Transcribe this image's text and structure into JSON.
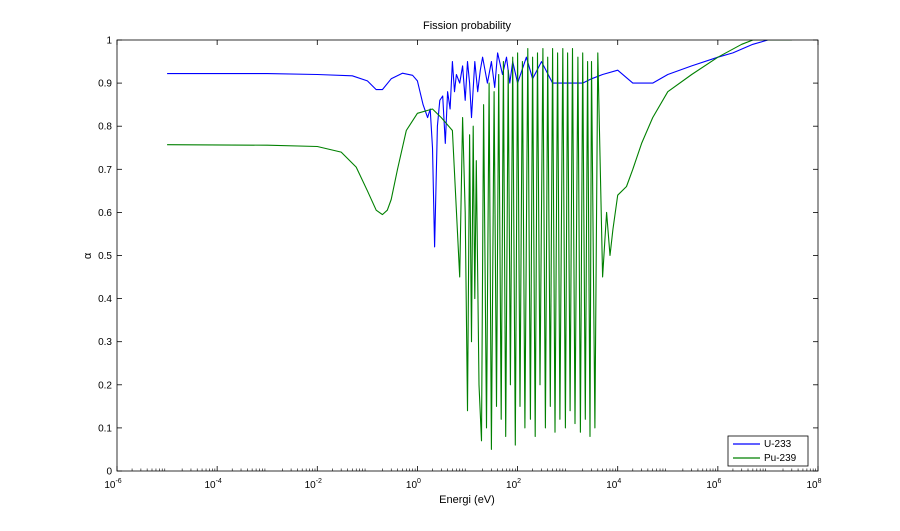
{
  "chart_data": {
    "type": "line",
    "title": "Fission probability",
    "xlabel": "Energi (eV)",
    "ylabel": "α",
    "xscale": "log",
    "xlim": [
      1e-06,
      100000000.0
    ],
    "ylim": [
      0,
      1
    ],
    "grid": false,
    "legend_position": "bottom-right",
    "x_ticks": [
      {
        "base": "10",
        "exp": "-6"
      },
      {
        "base": "10",
        "exp": "-4"
      },
      {
        "base": "10",
        "exp": "-2"
      },
      {
        "base": "10",
        "exp": "0"
      },
      {
        "base": "10",
        "exp": "2"
      },
      {
        "base": "10",
        "exp": "4"
      },
      {
        "base": "10",
        "exp": "6"
      },
      {
        "base": "10",
        "exp": "8"
      }
    ],
    "y_ticks": [
      "0",
      "0.1",
      "0.2",
      "0.3",
      "0.4",
      "0.5",
      "0.6",
      "0.7",
      "0.8",
      "0.9",
      "1"
    ],
    "series": [
      {
        "name": "U-233",
        "color": "#0000ff",
        "x": [
          1e-05,
          0.001,
          0.01,
          0.05,
          0.1,
          0.15,
          0.2,
          0.3,
          0.5,
          0.8,
          1.0,
          1.3,
          1.6,
          1.8,
          2.0,
          2.2,
          2.5,
          2.8,
          3.2,
          3.6,
          4.0,
          4.5,
          5.0,
          5.5,
          6.0,
          7.0,
          8.0,
          9.0,
          10,
          11,
          12,
          14,
          16,
          18,
          20,
          25,
          30,
          35,
          40,
          50,
          60,
          70,
          80,
          100,
          150,
          200,
          300,
          500,
          1000,
          2000,
          3000,
          5000,
          10000,
          20000,
          30000,
          50000,
          100000,
          300000,
          1000000,
          2000000,
          5000000,
          10000000,
          30000000
        ],
        "y": [
          0.922,
          0.922,
          0.92,
          0.917,
          0.905,
          0.885,
          0.885,
          0.91,
          0.923,
          0.918,
          0.905,
          0.85,
          0.82,
          0.84,
          0.75,
          0.52,
          0.8,
          0.86,
          0.87,
          0.76,
          0.88,
          0.84,
          0.95,
          0.88,
          0.92,
          0.9,
          0.94,
          0.86,
          0.95,
          0.9,
          0.82,
          0.95,
          0.88,
          0.93,
          0.96,
          0.9,
          0.95,
          0.89,
          0.97,
          0.92,
          0.96,
          0.9,
          0.95,
          0.9,
          0.96,
          0.91,
          0.95,
          0.9,
          0.9,
          0.9,
          0.91,
          0.92,
          0.93,
          0.9,
          0.9,
          0.9,
          0.92,
          0.94,
          0.96,
          0.97,
          0.99,
          1.0,
          1.0
        ]
      },
      {
        "name": "Pu-239",
        "color": "#008000",
        "x": [
          1e-05,
          0.001,
          0.01,
          0.03,
          0.06,
          0.1,
          0.15,
          0.2,
          0.25,
          0.3,
          0.4,
          0.6,
          1.0,
          2.0,
          3.0,
          5.0,
          7.0,
          8.0,
          9.0,
          10,
          11,
          12,
          13,
          14,
          15,
          17,
          19,
          21,
          24,
          27,
          30,
          34,
          38,
          42,
          47,
          52,
          58,
          65,
          72,
          80,
          90,
          100,
          112,
          125,
          140,
          160,
          180,
          200,
          225,
          250,
          280,
          320,
          360,
          400,
          450,
          500,
          560,
          630,
          700,
          800,
          900,
          1000,
          1120,
          1250,
          1400,
          1600,
          1800,
          2000,
          2250,
          2500,
          2800,
          3000,
          3500,
          4000,
          5000,
          6000,
          7000,
          8000,
          10000,
          15000,
          20000,
          30000,
          50000,
          100000,
          300000,
          1000000,
          3000000,
          5000000,
          10000000,
          30000000
        ],
        "y": [
          0.757,
          0.756,
          0.753,
          0.74,
          0.705,
          0.65,
          0.605,
          0.595,
          0.605,
          0.63,
          0.7,
          0.79,
          0.83,
          0.84,
          0.82,
          0.79,
          0.45,
          0.82,
          0.6,
          0.14,
          0.78,
          0.3,
          0.8,
          0.4,
          0.72,
          0.2,
          0.07,
          0.85,
          0.1,
          0.9,
          0.05,
          0.88,
          0.15,
          0.92,
          0.12,
          0.95,
          0.08,
          0.93,
          0.2,
          0.96,
          0.06,
          0.97,
          0.15,
          0.95,
          0.1,
          0.98,
          0.12,
          0.96,
          0.08,
          0.97,
          0.2,
          0.98,
          0.1,
          0.96,
          0.15,
          0.98,
          0.09,
          0.97,
          0.12,
          0.98,
          0.1,
          0.97,
          0.14,
          0.98,
          0.11,
          0.96,
          0.09,
          0.97,
          0.12,
          0.95,
          0.08,
          0.95,
          0.1,
          0.97,
          0.45,
          0.6,
          0.5,
          0.56,
          0.64,
          0.66,
          0.7,
          0.76,
          0.82,
          0.88,
          0.92,
          0.96,
          0.99,
          1.0,
          1.0,
          1.0
        ]
      }
    ]
  }
}
